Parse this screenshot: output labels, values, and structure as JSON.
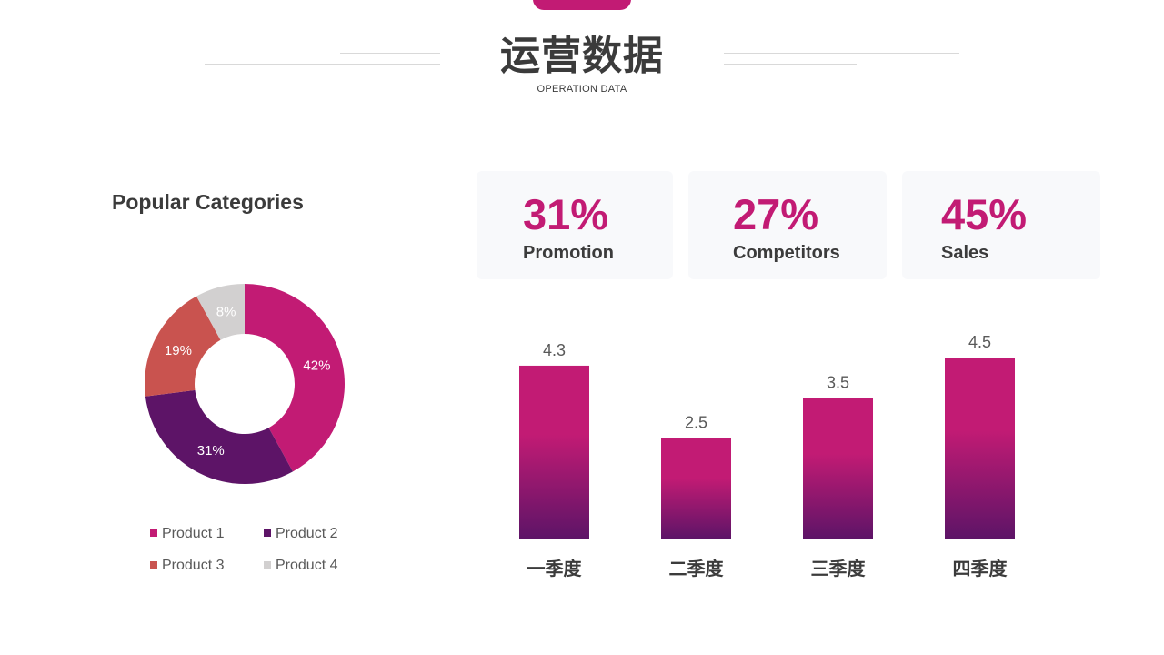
{
  "header": {
    "title": "运营数据",
    "subtitle": "OPERATION DATA"
  },
  "colors": {
    "accent": "#c21b74",
    "purple": "#5d1467",
    "red": "#c9534f",
    "gray": "#d2d0d0",
    "text": "#3b3b3b"
  },
  "stats": [
    {
      "value": "31%",
      "label": "Promotion"
    },
    {
      "value": "27%",
      "label": "Competitors"
    },
    {
      "value": "45%",
      "label": "Sales"
    }
  ],
  "chart_data": [
    {
      "type": "pie",
      "title": "Popular Categories",
      "donut": true,
      "categories": [
        "Product  1",
        "Product  2",
        "Product  3",
        "Product  4"
      ],
      "values": [
        42,
        31,
        19,
        8
      ],
      "labels": [
        "42%",
        "31%",
        "19%",
        "8%"
      ],
      "colors": [
        "#c21b74",
        "#5d1467",
        "#c9534f",
        "#d2d0d0"
      ],
      "legend": "bottom"
    },
    {
      "type": "bar",
      "categories": [
        "一季度",
        "二季度",
        "三季度",
        "四季度"
      ],
      "values": [
        4.3,
        2.5,
        3.5,
        4.5
      ],
      "ylim": [
        0,
        5
      ],
      "gradient": [
        "#c21b74",
        "#5d1467"
      ],
      "data_labels": true,
      "grid": false
    }
  ]
}
